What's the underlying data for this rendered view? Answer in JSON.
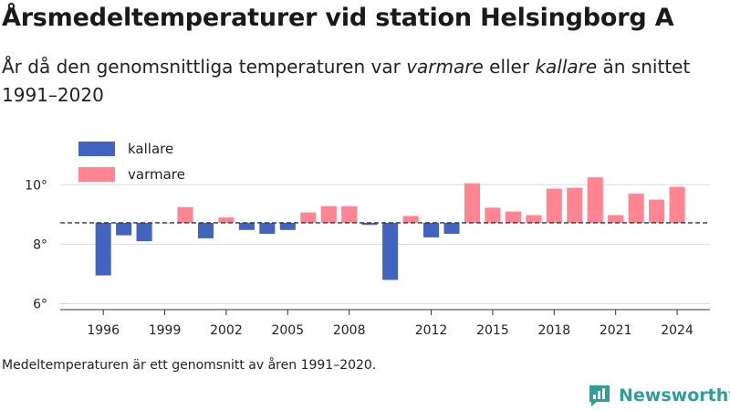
{
  "header": {
    "title": "Årsmedeltemperaturer vid station Helsingborg A",
    "subtitle_part1": "År då den genomsnittliga temperaturen var ",
    "subtitle_em1": "varmare",
    "subtitle_part2": " eller ",
    "subtitle_em2": "kallare",
    "subtitle_part3": " än snittet 1991–2020"
  },
  "footnote": "Medeltemperaturen är ett genomsnitt av åren 1991–2020.",
  "brand": {
    "name": "Newsworthy",
    "icon": "newsworthy-logo-icon",
    "color": "#2f9e97"
  },
  "chart_data": {
    "type": "bar",
    "baseline": 8.72,
    "ylim": [
      5.8,
      11.3
    ],
    "yticks": [
      6,
      8,
      10
    ],
    "ytick_labels": [
      "6°",
      "8°",
      "10°"
    ],
    "xlim": [
      1993.9,
      2025.6
    ],
    "xticks": [
      1996,
      1999,
      2002,
      2005,
      2008,
      2012,
      2015,
      2018,
      2021,
      2024
    ],
    "xtick_labels": [
      "1996",
      "1999",
      "2002",
      "2005",
      "2008",
      "2012",
      "2015",
      "2018",
      "2021",
      "2024"
    ],
    "grid": true,
    "legend": {
      "placement": "top-left",
      "entries": [
        {
          "label": "kallare",
          "color": "#4264c0"
        },
        {
          "label": "varmare",
          "color": "#ff8593"
        }
      ]
    },
    "colors": {
      "colder": "#4264c0",
      "warmer": "#ff8593"
    },
    "x": [
      1996,
      1997,
      1998,
      1999,
      2000,
      2001,
      2002,
      2003,
      2004,
      2005,
      2006,
      2007,
      2008,
      2009,
      2010,
      2011,
      2012,
      2013,
      2014,
      2015,
      2016,
      2017,
      2018,
      2019,
      2020,
      2021,
      2022,
      2023,
      2024
    ],
    "values": [
      6.95,
      8.3,
      8.1,
      8.72,
      9.25,
      8.2,
      8.9,
      8.48,
      8.35,
      8.48,
      9.07,
      9.28,
      9.28,
      8.65,
      6.8,
      8.95,
      8.23,
      8.35,
      10.05,
      9.23,
      9.1,
      8.98,
      9.87,
      9.9,
      10.25,
      8.98,
      9.7,
      9.5,
      9.93
    ]
  }
}
